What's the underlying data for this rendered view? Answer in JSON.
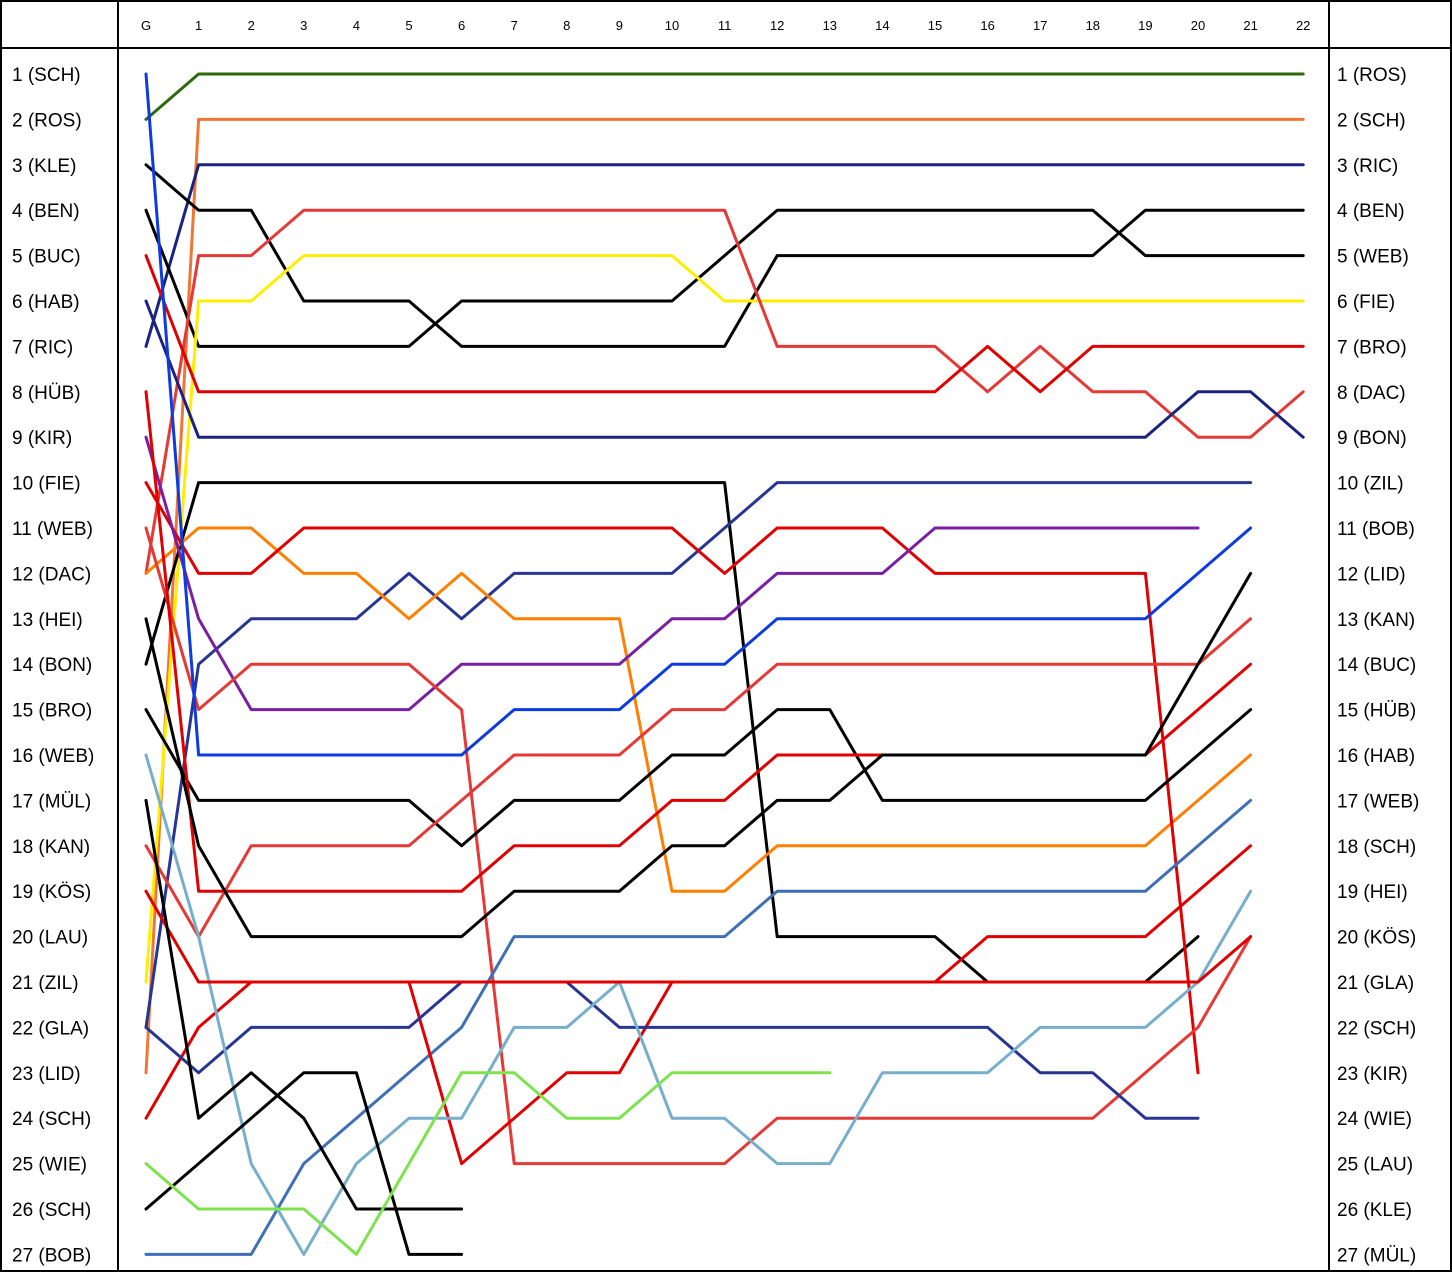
{
  "chart_data": {
    "type": "line",
    "x": [
      "G",
      "1",
      "2",
      "3",
      "4",
      "5",
      "6",
      "7",
      "8",
      "9",
      "10",
      "11",
      "12",
      "13",
      "14",
      "15",
      "16",
      "17",
      "18",
      "19",
      "20",
      "21",
      "22"
    ],
    "grid_labels": [
      "1 (SCH)",
      "2 (ROS)",
      "3 (KLE)",
      "4 (BEN)",
      "5 (BUC)",
      "6 (HAB)",
      "7 (RIC)",
      "8 (HÜB)",
      "9 (KIR)",
      "10 (FIE)",
      "11 (WEB)",
      "12 (DAC)",
      "13 (HEI)",
      "14 (BON)",
      "15 (BRO)",
      "16 (WEB)",
      "17 (MÜL)",
      "18 (KAN)",
      "19 (KÖS)",
      "20 (LAU)",
      "21 (ZIL)",
      "22 (GLA)",
      "23 (LID)",
      "24 (SCH)",
      "25 (WIE)",
      "26 (SCH)",
      "27 (BOB)"
    ],
    "result_labels": [
      "1 (ROS)",
      "2 (SCH)",
      "3 (RIC)",
      "4 (BEN)",
      "5 (WEB)",
      "6 (FIE)",
      "7 (BRO)",
      "8 (DAC)",
      "9 (BON)",
      "10 (ZIL)",
      "11 (BOB)",
      "12 (LID)",
      "13 (KAN)",
      "14 (BUC)",
      "15 (HÜB)",
      "16 (HAB)",
      "17 (WEB)",
      "18 (SCH)",
      "19 (HEI)",
      "20 (KÖS)",
      "21 (GLA)",
      "22 (SCH)",
      "23 (KIR)",
      "24 (WIE)",
      "25 (LAU)",
      "26 (KLE)",
      "27 (MÜL)"
    ],
    "ylim": [
      1,
      27
    ],
    "series": [
      {
        "color": "#2b6a0d",
        "positions": [
          2,
          1,
          1,
          1,
          1,
          1,
          1,
          1,
          1,
          1,
          1,
          1,
          1,
          1,
          1,
          1,
          1,
          1,
          1,
          1,
          1,
          1,
          1
        ]
      },
      {
        "color": "#ee7733",
        "positions": [
          23,
          2,
          2,
          2,
          2,
          2,
          2,
          2,
          2,
          2,
          2,
          2,
          2,
          2,
          2,
          2,
          2,
          2,
          2,
          2,
          2,
          2,
          2
        ]
      },
      {
        "color": "#1a237e",
        "positions": [
          7,
          3,
          3,
          3,
          3,
          3,
          3,
          3,
          3,
          3,
          3,
          3,
          3,
          3,
          3,
          3,
          3,
          3,
          3,
          3,
          3,
          3,
          3
        ]
      },
      {
        "color": "#000000",
        "positions": [
          3,
          4,
          4,
          6,
          6,
          6,
          7,
          7,
          7,
          7,
          7,
          7,
          5,
          5,
          5,
          5,
          5,
          5,
          5,
          4,
          4,
          4,
          4
        ]
      },
      {
        "color": "#000000",
        "positions": [
          4,
          7,
          7,
          7,
          7,
          7,
          6,
          6,
          6,
          6,
          6,
          5,
          4,
          4,
          4,
          4,
          4,
          4,
          4,
          5,
          5,
          5,
          5
        ]
      },
      {
        "color": "#ffee00",
        "positions": [
          21,
          6,
          6,
          5,
          5,
          5,
          5,
          5,
          5,
          5,
          5,
          6,
          6,
          6,
          6,
          6,
          6,
          6,
          6,
          6,
          6,
          6,
          6
        ]
      },
      {
        "color": "#e53935",
        "positions": [
          12,
          5,
          5,
          4,
          4,
          4,
          4,
          4,
          4,
          4,
          4,
          4,
          7,
          7,
          7,
          7,
          8,
          7,
          8,
          8,
          9,
          9,
          8
        ]
      },
      {
        "color": "#1a237e",
        "positions": [
          6,
          9,
          9,
          9,
          9,
          9,
          9,
          9,
          9,
          9,
          9,
          9,
          9,
          9,
          9,
          9,
          9,
          9,
          9,
          9,
          8,
          8,
          9
        ]
      },
      {
        "color": "#e00000",
        "positions": [
          5,
          8,
          8,
          8,
          8,
          8,
          8,
          8,
          8,
          8,
          8,
          8,
          8,
          8,
          8,
          8,
          7,
          8,
          7,
          7,
          7,
          7,
          7
        ]
      },
      {
        "color": "#000000",
        "positions": [
          14,
          10,
          10,
          10,
          10,
          10,
          10,
          10,
          10,
          10,
          10,
          10,
          20,
          20,
          20,
          20,
          21,
          21,
          21,
          21,
          20
        ]
      },
      {
        "color": "#283593",
        "positions": [
          22,
          14,
          13,
          13,
          13,
          12,
          13,
          12,
          12,
          12,
          12,
          11,
          10,
          10,
          10,
          10,
          10,
          10,
          10,
          10,
          10,
          10
        ]
      },
      {
        "color": "#ff7f00",
        "positions": [
          12,
          11,
          11,
          12,
          12,
          13,
          12,
          13,
          13,
          13,
          19,
          19,
          18,
          18,
          18,
          18,
          18,
          18,
          18,
          18,
          17,
          16
        ]
      },
      {
        "color": "#e00000",
        "positions": [
          10,
          12,
          12,
          11,
          11,
          11,
          11,
          11,
          11,
          11,
          11,
          12,
          11,
          11,
          11,
          12,
          12,
          12,
          12,
          12,
          23
        ]
      },
      {
        "color": "#7b1fa2",
        "positions": [
          9,
          13,
          15,
          15,
          15,
          15,
          14,
          14,
          14,
          14,
          13,
          13,
          12,
          12,
          12,
          11,
          11,
          11,
          11,
          11,
          11
        ]
      },
      {
        "color": "#e53935",
        "positions": [
          11,
          15,
          14,
          14,
          14,
          14,
          15,
          25,
          25,
          25,
          25,
          25,
          24,
          24,
          24,
          24,
          24,
          24,
          24,
          23,
          22,
          20
        ]
      },
      {
        "color": "#0d3be0",
        "positions": [
          1,
          16,
          16,
          16,
          16,
          16,
          16,
          15,
          15,
          15,
          14,
          14,
          13,
          13,
          13,
          13,
          13,
          13,
          13,
          13,
          12,
          11
        ]
      },
      {
        "color": "#000000",
        "positions": [
          15,
          17,
          17,
          17,
          17,
          17,
          18,
          17,
          17,
          17,
          16,
          16,
          15,
          15,
          17,
          17,
          17,
          17,
          17,
          17,
          16,
          15
        ]
      },
      {
        "color": "#e00000",
        "positions": [
          8,
          19,
          19,
          19,
          19,
          19,
          19,
          18,
          18,
          18,
          17,
          17,
          16,
          16,
          16,
          16,
          16,
          16,
          16,
          16,
          15,
          14
        ]
      },
      {
        "color": "#e53935",
        "positions": [
          18,
          20,
          18,
          18,
          18,
          18,
          17,
          16,
          16,
          16,
          15,
          15,
          14,
          14,
          14,
          14,
          14,
          14,
          14,
          14,
          14,
          13
        ]
      },
      {
        "color": "#000000",
        "positions": [
          13,
          18,
          20,
          20,
          20,
          20,
          20,
          19,
          19,
          19,
          18,
          18,
          17,
          17,
          16,
          16,
          16,
          16,
          16,
          16,
          14,
          12
        ]
      },
      {
        "color": "#3f6fb5",
        "positions": [
          27,
          27,
          27,
          25,
          24,
          23,
          22,
          20,
          20,
          20,
          20,
          20,
          19,
          19,
          19,
          19,
          19,
          19,
          19,
          19,
          18,
          17
        ]
      },
      {
        "color": "#e00000",
        "positions": [
          24,
          22,
          21,
          21,
          21,
          21,
          25,
          24,
          23,
          23,
          21,
          21,
          21,
          21,
          21,
          21,
          20,
          20,
          20,
          20,
          19,
          18
        ]
      },
      {
        "color": "#283593",
        "positions": [
          22,
          23,
          22,
          22,
          22,
          22,
          21,
          21,
          21,
          22,
          22,
          22,
          22,
          22,
          22,
          22,
          22,
          23,
          23,
          24,
          24
        ]
      },
      {
        "color": "#76aecb",
        "positions": [
          16,
          20,
          25,
          27,
          25,
          24,
          24,
          22,
          22,
          21,
          24,
          24,
          25,
          25,
          23,
          23,
          23,
          22,
          22,
          22,
          21,
          19
        ]
      },
      {
        "color": "#e00000",
        "positions": [
          19,
          21,
          21,
          21,
          21,
          21,
          21,
          21,
          21,
          21,
          21,
          21,
          21,
          21,
          21,
          21,
          21,
          21,
          21,
          21,
          21,
          20
        ]
      },
      {
        "color": "#000000",
        "positions": [
          17,
          24,
          23,
          24,
          26,
          26,
          26
        ]
      },
      {
        "color": "#000000",
        "positions": [
          26,
          25,
          24,
          23,
          23,
          27,
          27
        ]
      },
      {
        "color": "#7ee24f",
        "positions": [
          25,
          26,
          26,
          26,
          27,
          25,
          23,
          23,
          24,
          24,
          23,
          23,
          23,
          23
        ]
      }
    ]
  }
}
